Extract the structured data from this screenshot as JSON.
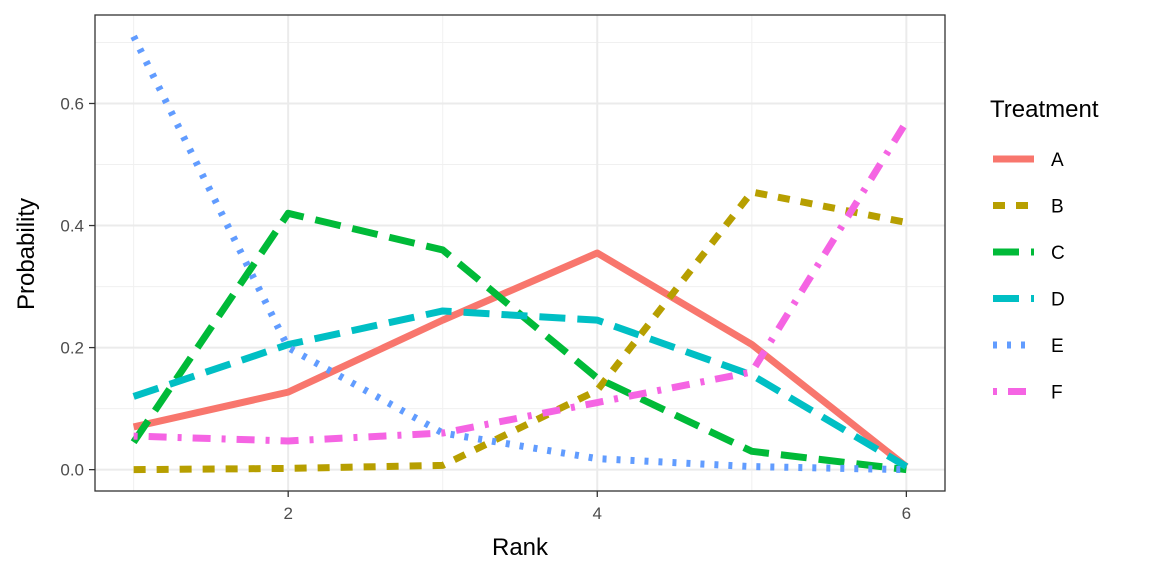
{
  "chart_data": {
    "type": "line",
    "title": "",
    "xlabel": "Rank",
    "ylabel": "Probability",
    "xlim": [
      0.75,
      6.25
    ],
    "ylim": [
      -0.035,
      0.745
    ],
    "x": [
      1,
      2,
      3,
      4,
      5,
      6
    ],
    "x_ticks": [
      2,
      4,
      6
    ],
    "x_tick_labels": [
      "2",
      "4",
      "6"
    ],
    "y_ticks": [
      0.0,
      0.2,
      0.4,
      0.6
    ],
    "y_tick_labels": [
      "0.0",
      "0.2",
      "0.4",
      "0.6"
    ],
    "grid": true,
    "legend": {
      "title": "Treatment",
      "position": "right"
    },
    "series": [
      {
        "name": "A",
        "color": "#F8766D",
        "linetype": "solid",
        "values": [
          0.07,
          0.127,
          0.245,
          0.355,
          0.205,
          0.005
        ]
      },
      {
        "name": "B",
        "color": "#B79F00",
        "linetype": "dashed",
        "values": [
          0.0,
          0.002,
          0.007,
          0.13,
          0.455,
          0.405
        ]
      },
      {
        "name": "C",
        "color": "#00BA38",
        "linetype": "longdash",
        "values": [
          0.045,
          0.42,
          0.36,
          0.15,
          0.03,
          0.0
        ]
      },
      {
        "name": "D",
        "color": "#00BFC4",
        "linetype": "longdash",
        "values": [
          0.12,
          0.205,
          0.26,
          0.245,
          0.155,
          0.005
        ]
      },
      {
        "name": "E",
        "color": "#619CFF",
        "linetype": "dotted",
        "values": [
          0.71,
          0.2,
          0.06,
          0.018,
          0.005,
          0.0
        ]
      },
      {
        "name": "F",
        "color": "#F564E3",
        "linetype": "dotdash",
        "values": [
          0.055,
          0.047,
          0.06,
          0.11,
          0.16,
          0.57
        ]
      }
    ]
  }
}
